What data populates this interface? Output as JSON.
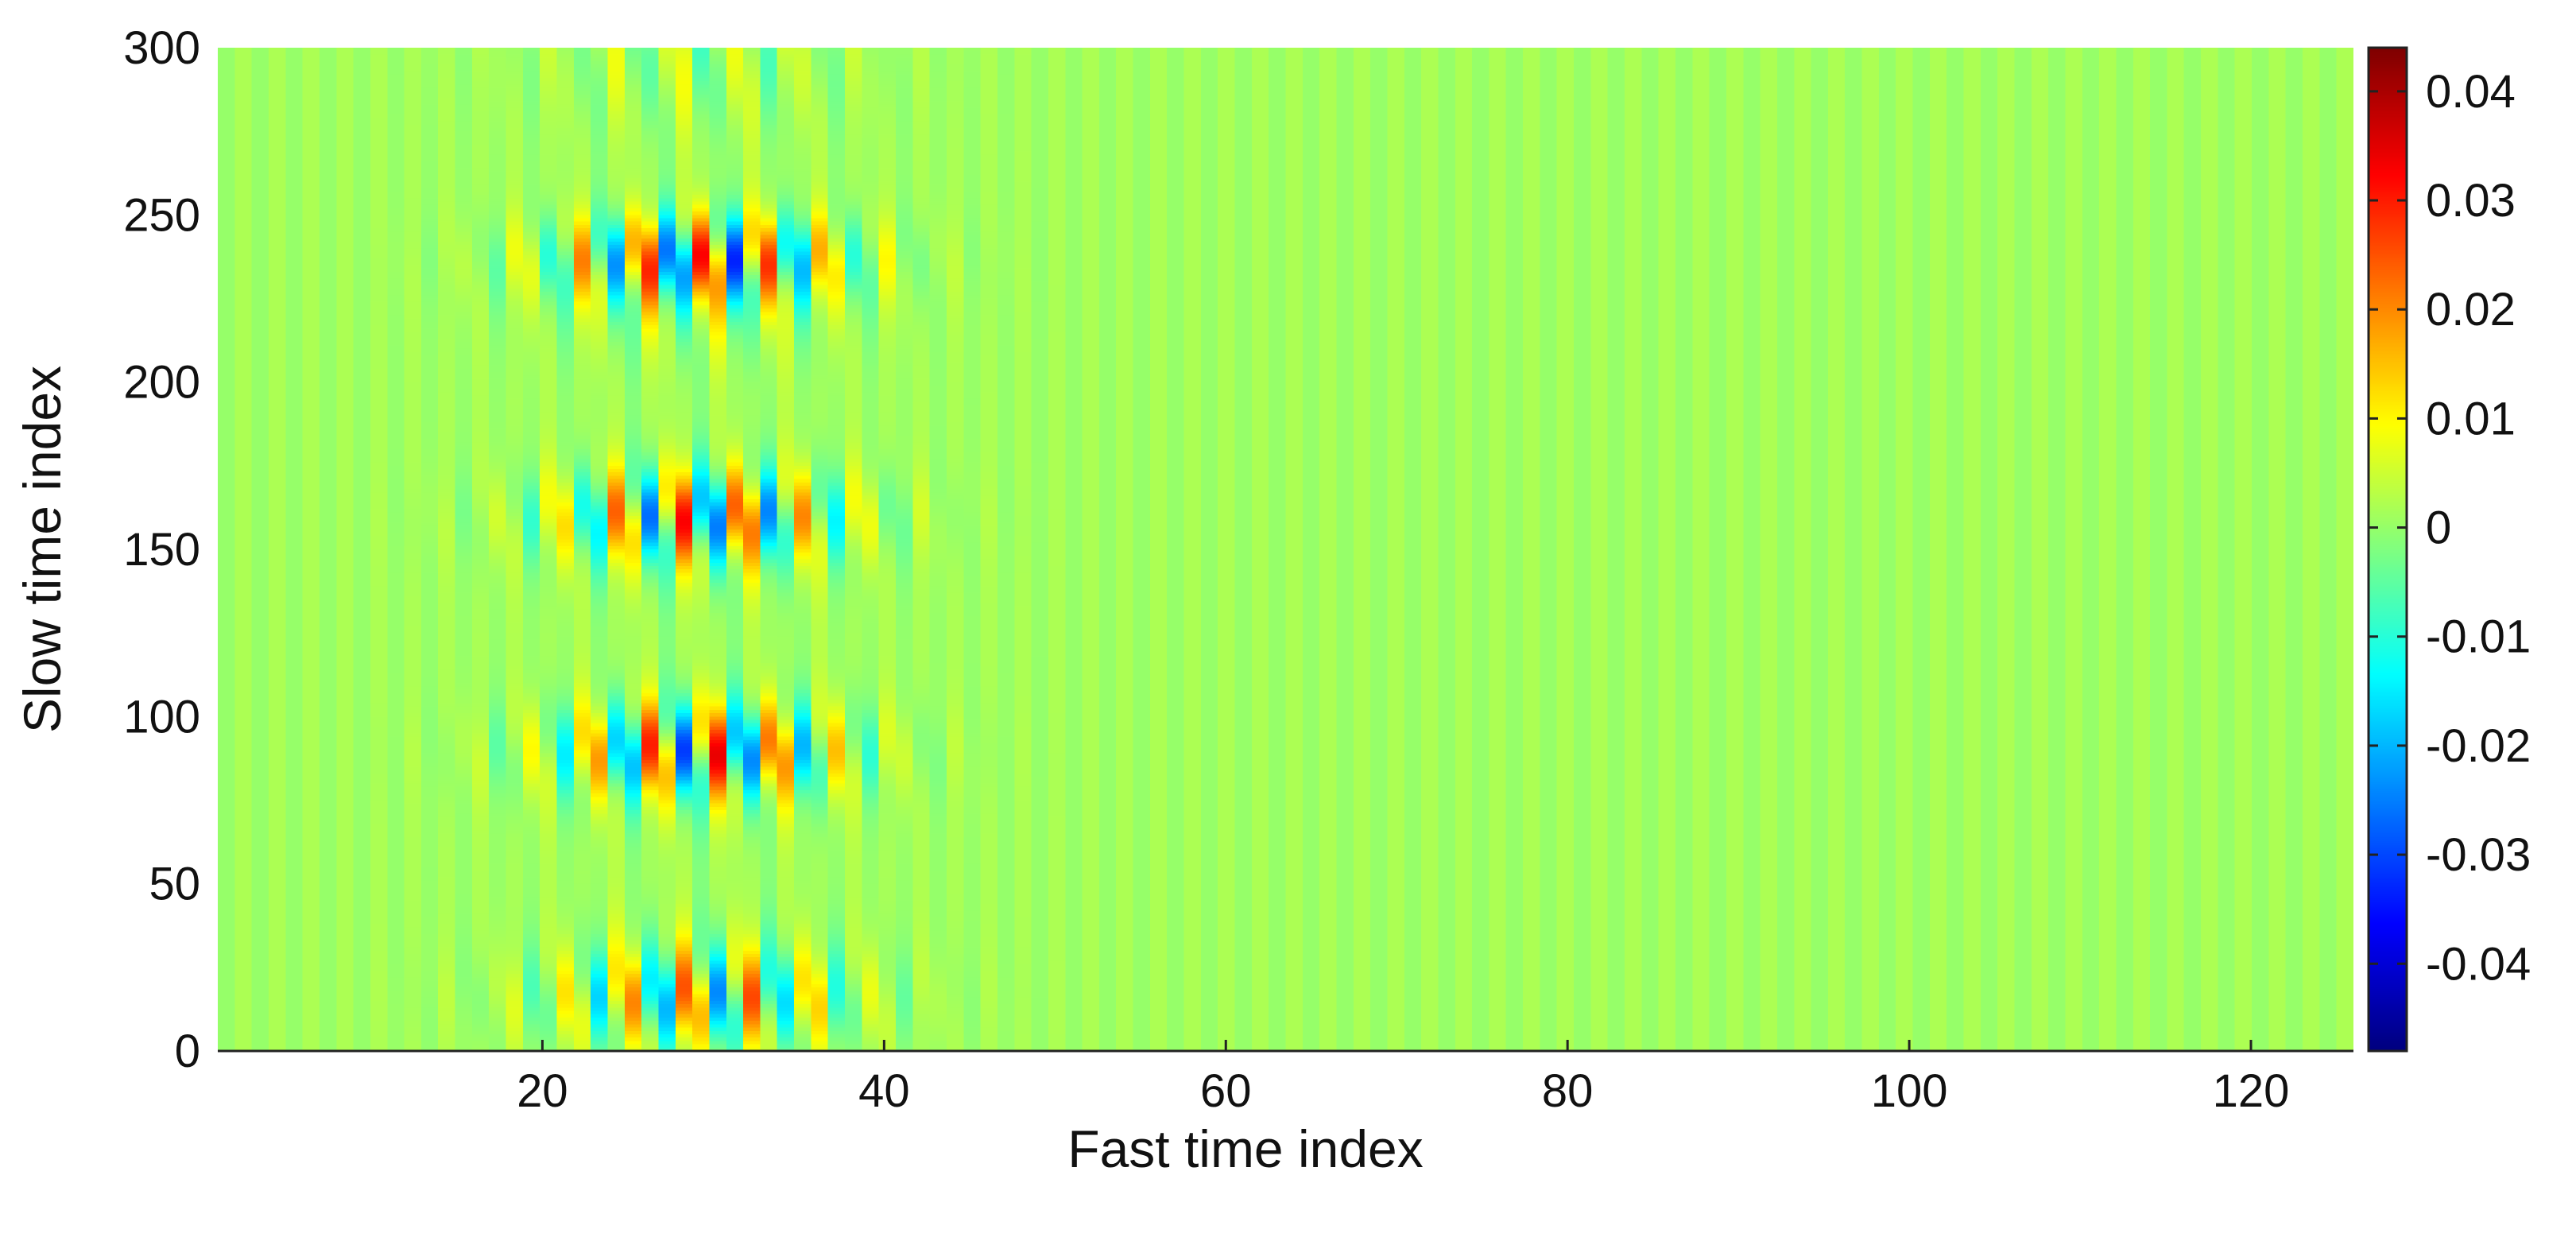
{
  "chart_data": {
    "type": "heatmap",
    "title": "",
    "xlabel": "Fast time index",
    "ylabel": "Slow time index",
    "xlim": [
      1,
      126
    ],
    "ylim": [
      0,
      300
    ],
    "x_ticks": [
      20,
      40,
      60,
      80,
      100,
      120
    ],
    "y_ticks": [
      0,
      50,
      100,
      150,
      200,
      250,
      300
    ],
    "colorbar": {
      "colormap": "jet",
      "clim": [
        -0.048,
        0.044
      ],
      "ticks": [
        0.04,
        0.03,
        0.02,
        0.01,
        0,
        -0.01,
        -0.02,
        -0.03,
        -0.04
      ],
      "tick_labels": [
        "0.04",
        "0.03",
        "0.02",
        "0.01",
        "0",
        "-0.01",
        "-0.02",
        "-0.03",
        "-0.04"
      ]
    },
    "signal": {
      "carrier_period_fast_index": 3.6,
      "active_fast_index_range": [
        14,
        46
      ],
      "peak_fast_index": 29,
      "strong_slow_index_bands": [
        {
          "center": 15,
          "peak_amplitude": 0.022
        },
        {
          "center": 90,
          "peak_amplitude": 0.03
        },
        {
          "center": 160,
          "peak_amplitude": 0.028
        },
        {
          "center": 240,
          "peak_amplitude": 0.04
        }
      ],
      "background_value": 0.002
    },
    "grid": false,
    "legend": "none"
  }
}
